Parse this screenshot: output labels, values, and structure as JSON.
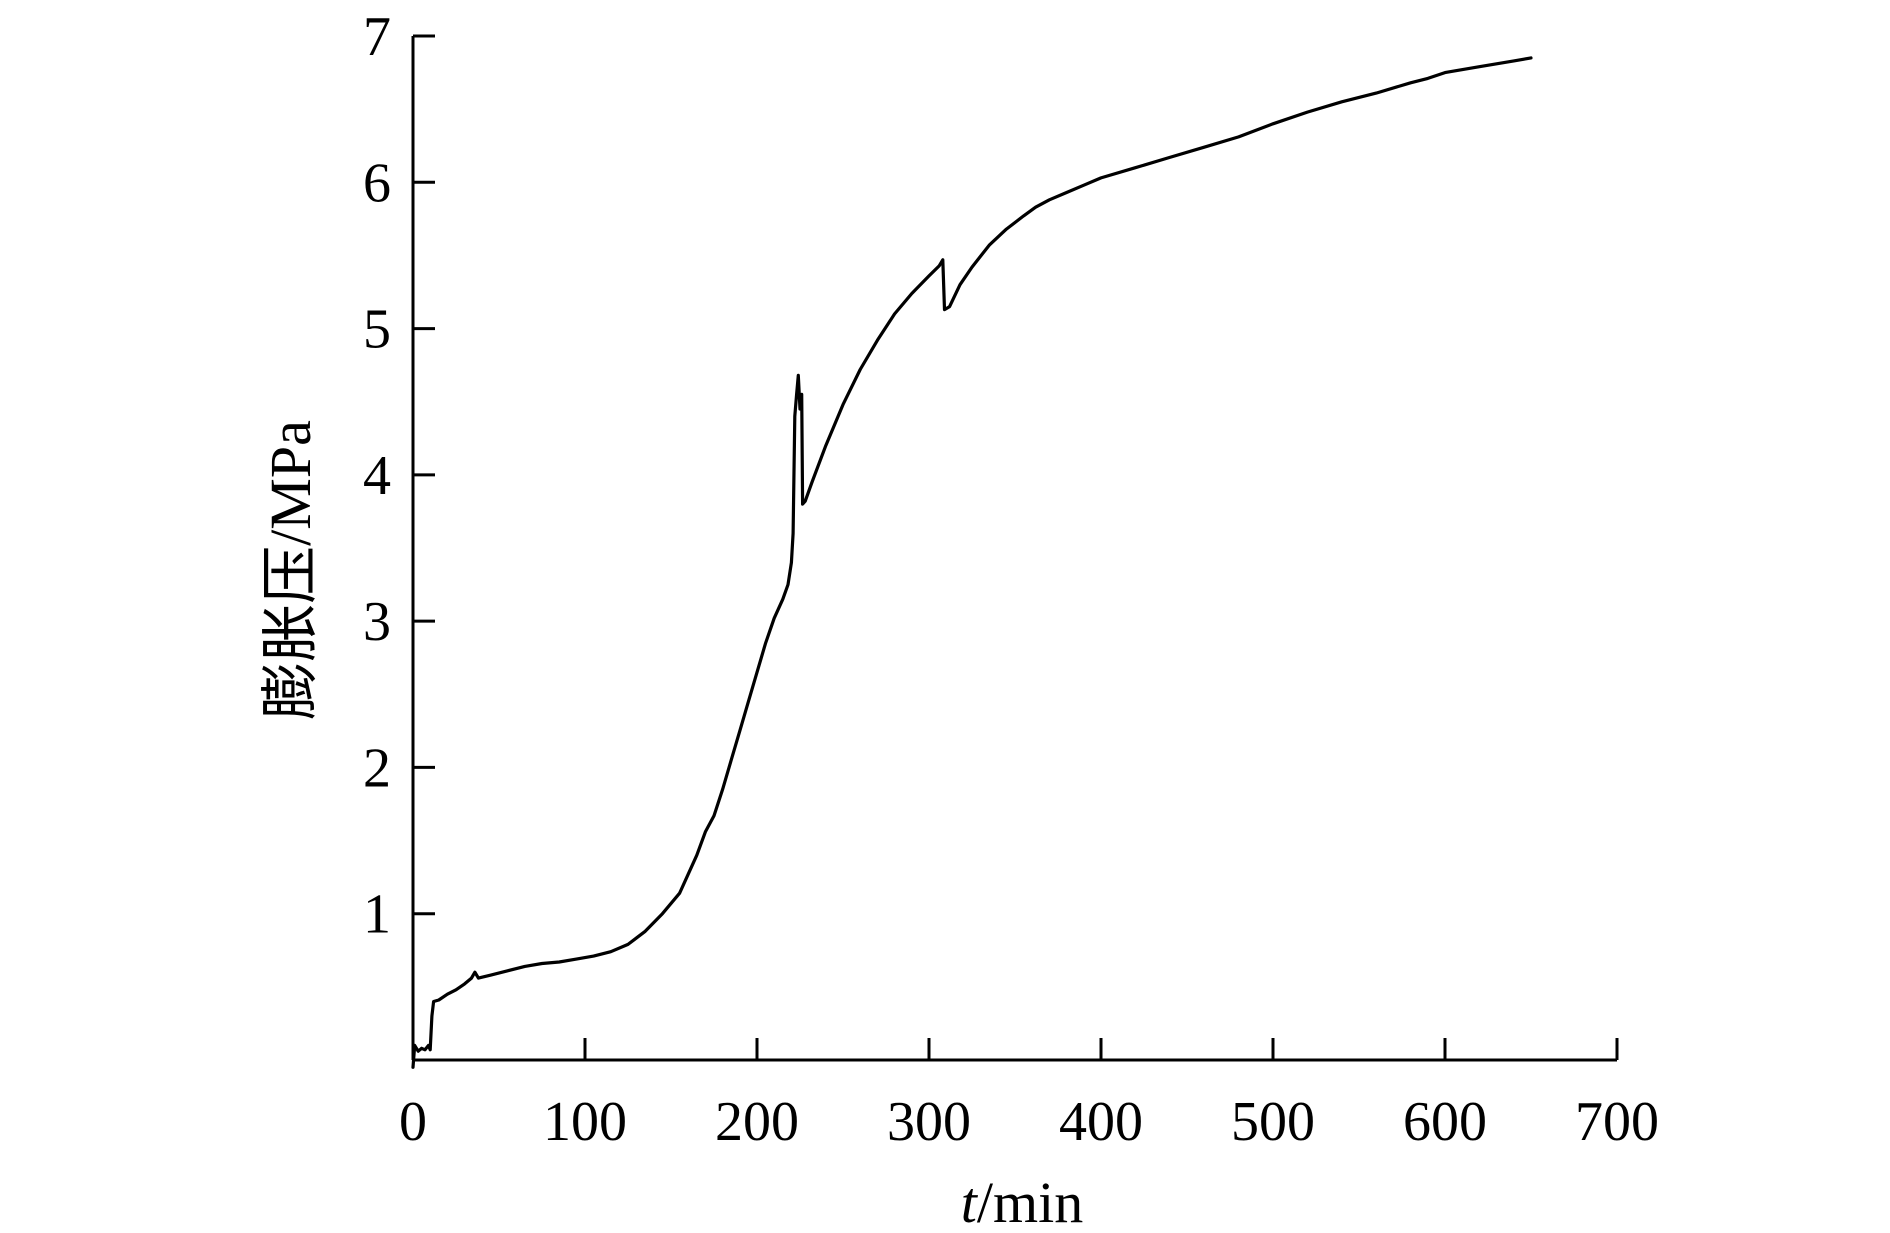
{
  "chart_data": {
    "type": "line",
    "xlabel_italic": "t",
    "xlabel_rest": "/min",
    "ylabel": "膨胀压/MPa",
    "xlim": [
      0,
      700
    ],
    "ylim": [
      0,
      7
    ],
    "xticks": [
      0,
      100,
      200,
      300,
      400,
      500,
      600,
      700
    ],
    "yticks": [
      1,
      2,
      3,
      4,
      5,
      6,
      7
    ],
    "grid": false,
    "series": [
      {
        "color": "#000000",
        "points": [
          [
            0,
            -0.05
          ],
          [
            1,
            0.1
          ],
          [
            3,
            0.06
          ],
          [
            5,
            0.08
          ],
          [
            7,
            0.07
          ],
          [
            9,
            0.1
          ],
          [
            10,
            0.07
          ],
          [
            11,
            0.3
          ],
          [
            12,
            0.4
          ],
          [
            15,
            0.41
          ],
          [
            20,
            0.45
          ],
          [
            25,
            0.48
          ],
          [
            30,
            0.52
          ],
          [
            34,
            0.56
          ],
          [
            36,
            0.6
          ],
          [
            38,
            0.56
          ],
          [
            45,
            0.58
          ],
          [
            55,
            0.61
          ],
          [
            65,
            0.64
          ],
          [
            75,
            0.66
          ],
          [
            85,
            0.67
          ],
          [
            95,
            0.69
          ],
          [
            105,
            0.71
          ],
          [
            115,
            0.74
          ],
          [
            125,
            0.79
          ],
          [
            135,
            0.88
          ],
          [
            145,
            1.0
          ],
          [
            155,
            1.14
          ],
          [
            160,
            1.27
          ],
          [
            165,
            1.4
          ],
          [
            170,
            1.56
          ],
          [
            175,
            1.67
          ],
          [
            180,
            1.85
          ],
          [
            185,
            2.05
          ],
          [
            190,
            2.25
          ],
          [
            195,
            2.45
          ],
          [
            200,
            2.65
          ],
          [
            205,
            2.85
          ],
          [
            210,
            3.02
          ],
          [
            215,
            3.15
          ],
          [
            218,
            3.25
          ],
          [
            220,
            3.4
          ],
          [
            221,
            3.6
          ],
          [
            222,
            4.4
          ],
          [
            223,
            4.55
          ],
          [
            224,
            4.68
          ],
          [
            225,
            4.45
          ],
          [
            226,
            4.55
          ],
          [
            226.5,
            3.8
          ],
          [
            228,
            3.82
          ],
          [
            232,
            3.95
          ],
          [
            240,
            4.2
          ],
          [
            250,
            4.48
          ],
          [
            260,
            4.72
          ],
          [
            270,
            4.92
          ],
          [
            280,
            5.1
          ],
          [
            290,
            5.24
          ],
          [
            300,
            5.36
          ],
          [
            306,
            5.43
          ],
          [
            308,
            5.47
          ],
          [
            309,
            5.13
          ],
          [
            312,
            5.15
          ],
          [
            318,
            5.3
          ],
          [
            325,
            5.42
          ],
          [
            335,
            5.57
          ],
          [
            345,
            5.68
          ],
          [
            355,
            5.77
          ],
          [
            362,
            5.83
          ],
          [
            370,
            5.88
          ],
          [
            380,
            5.93
          ],
          [
            390,
            5.98
          ],
          [
            400,
            6.03
          ],
          [
            420,
            6.1
          ],
          [
            440,
            6.17
          ],
          [
            460,
            6.24
          ],
          [
            480,
            6.31
          ],
          [
            500,
            6.4
          ],
          [
            520,
            6.48
          ],
          [
            540,
            6.55
          ],
          [
            560,
            6.61
          ],
          [
            580,
            6.68
          ],
          [
            590,
            6.71
          ],
          [
            600,
            6.75
          ],
          [
            620,
            6.79
          ],
          [
            640,
            6.83
          ],
          [
            650,
            6.85
          ]
        ]
      }
    ]
  }
}
